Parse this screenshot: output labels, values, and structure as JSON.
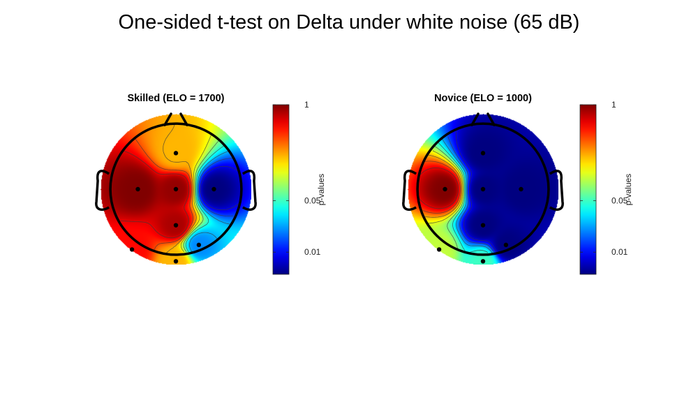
{
  "figure": {
    "title": "One-sided t-test on Delta under white noise (65 dB)"
  },
  "chart_data": [
    {
      "type": "heatmap",
      "subtype": "scalp-topography",
      "title": "Skilled (ELO = 1700)",
      "colormap": "jet",
      "scale": "log",
      "value_range": [
        0.005,
        1
      ],
      "colorbar": {
        "label": "p-values",
        "ticks": [
          {
            "value": 1,
            "label": "1"
          },
          {
            "value": 0.05,
            "label": "0.05"
          },
          {
            "value": 0.01,
            "label": "0.01"
          }
        ]
      },
      "electrodes": [
        {
          "x": 0.0,
          "y": 0.55,
          "p": 0.2
        },
        {
          "x": -0.58,
          "y": 0.0,
          "p": 1.0
        },
        {
          "x": 0.0,
          "y": 0.0,
          "p": 0.9
        },
        {
          "x": 0.58,
          "y": 0.0,
          "p": 0.005
        },
        {
          "x": 0.0,
          "y": -0.55,
          "p": 0.8
        },
        {
          "x": -0.67,
          "y": -0.92,
          "p": 0.5
        },
        {
          "x": 0.0,
          "y": -1.1,
          "p": 0.2
        },
        {
          "x": 0.35,
          "y": -0.85,
          "p": 0.02
        }
      ],
      "grid": false,
      "legend": "right"
    },
    {
      "type": "heatmap",
      "subtype": "scalp-topography",
      "title": "Novice (ELO = 1000)",
      "colormap": "jet",
      "scale": "log",
      "value_range": [
        0.005,
        1
      ],
      "colorbar": {
        "label": "p-values",
        "ticks": [
          {
            "value": 1,
            "label": "1"
          },
          {
            "value": 0.05,
            "label": "0.05"
          },
          {
            "value": 0.01,
            "label": "0.01"
          }
        ]
      },
      "electrodes": [
        {
          "x": 0.0,
          "y": 0.55,
          "p": 0.005
        },
        {
          "x": -0.58,
          "y": 0.0,
          "p": 1.0
        },
        {
          "x": 0.0,
          "y": 0.0,
          "p": 0.005
        },
        {
          "x": 0.58,
          "y": 0.0,
          "p": 0.005
        },
        {
          "x": 0.0,
          "y": -0.55,
          "p": 0.005
        },
        {
          "x": -0.67,
          "y": -0.92,
          "p": 0.1
        },
        {
          "x": 0.0,
          "y": -1.1,
          "p": 0.05
        },
        {
          "x": 0.35,
          "y": -0.85,
          "p": 0.005
        }
      ],
      "grid": false,
      "legend": "right"
    }
  ]
}
